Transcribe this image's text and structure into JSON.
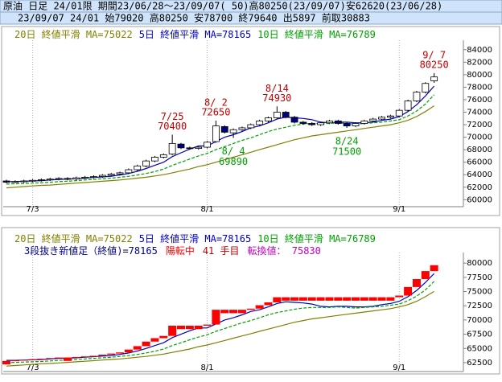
{
  "header": {
    "line1": "原油 日足 24/01限 期間23/06/28～23/09/07( 50)高80250(23/09/07)安62620(23/06/28)",
    "line2": "23/09/07 24/01 始79020 高80250 安78700 終79640 出5897 前取30883"
  },
  "chart_data": [
    {
      "type": "candlestick",
      "categories": [
        null,
        null,
        null,
        "7/3",
        null,
        null,
        null,
        null,
        null,
        null,
        null,
        null,
        null,
        null,
        null,
        null,
        null,
        null,
        null,
        null,
        null,
        null,
        null,
        "8/1",
        null,
        null,
        null,
        null,
        null,
        null,
        null,
        null,
        null,
        null,
        null,
        null,
        null,
        null,
        null,
        null,
        null,
        null,
        null,
        null,
        null,
        "9/1",
        null,
        null,
        null,
        null
      ],
      "open": [
        63000,
        62800,
        62900,
        63000,
        63100,
        63200,
        63300,
        63400,
        63300,
        63500,
        63600,
        63700,
        63900,
        64100,
        64300,
        64800,
        65400,
        66200,
        66800,
        67300,
        68900,
        68300,
        68200,
        68400,
        69300,
        71700,
        70700,
        71200,
        71500,
        72000,
        72600,
        73100,
        74000,
        73200,
        72400,
        72200,
        72000,
        72300,
        72600,
        72200,
        71800,
        72200,
        72600,
        72900,
        73200,
        73400,
        74300,
        75800,
        77200,
        79020
      ],
      "high": [
        63200,
        63100,
        63200,
        63300,
        63400,
        63500,
        63600,
        63600,
        63700,
        63800,
        63900,
        64100,
        64300,
        64500,
        65000,
        65600,
        66400,
        67000,
        67400,
        70400,
        69100,
        68500,
        68600,
        69400,
        72650,
        71900,
        71400,
        71700,
        72200,
        72800,
        73300,
        74930,
        74200,
        73400,
        72600,
        72400,
        72500,
        72800,
        72800,
        72400,
        72400,
        72800,
        73100,
        73400,
        73600,
        74500,
        76000,
        77400,
        78800,
        80250
      ],
      "low": [
        62620,
        62700,
        62700,
        62800,
        62900,
        63000,
        63100,
        63100,
        63100,
        63300,
        63400,
        63500,
        63700,
        63900,
        64100,
        64600,
        65200,
        66000,
        66600,
        67100,
        68100,
        68000,
        68000,
        68200,
        69100,
        70600,
        69890,
        71000,
        71300,
        71800,
        72400,
        72900,
        73000,
        72200,
        72000,
        71800,
        71800,
        72100,
        72000,
        71500,
        71600,
        72000,
        72400,
        72700,
        73000,
        73200,
        74100,
        75600,
        77000,
        78700
      ],
      "close": [
        62800,
        62900,
        63000,
        63100,
        63200,
        63300,
        63400,
        63300,
        63500,
        63600,
        63700,
        63900,
        64100,
        64300,
        64800,
        65400,
        66200,
        66800,
        67200,
        69000,
        68300,
        68200,
        68400,
        69200,
        71800,
        70800,
        71200,
        71500,
        72000,
        72600,
        73100,
        74000,
        73200,
        72400,
        72200,
        72000,
        72300,
        72600,
        72200,
        71800,
        72200,
        72600,
        72900,
        73200,
        73400,
        74300,
        75800,
        77200,
        78600,
        79640
      ],
      "up_color": "#ffffff",
      "down_color": "#000080",
      "series": [
        {
          "name": "20日 終値平滑 MA=75022",
          "color": "#808000",
          "values": [
            61900,
            62000,
            62100,
            62200,
            62300,
            62350,
            62450,
            62550,
            62650,
            62750,
            62850,
            62950,
            63050,
            63150,
            63300,
            63450,
            63600,
            63800,
            64000,
            64300,
            64600,
            64900,
            65300,
            65600,
            66000,
            66400,
            66800,
            67200,
            67600,
            68000,
            68400,
            68800,
            69200,
            69600,
            69900,
            70200,
            70400,
            70600,
            70800,
            71000,
            71200,
            71400,
            71600,
            71800,
            72000,
            72300,
            72700,
            73300,
            74100,
            75022
          ]
        },
        {
          "name": "5日 終値平滑 MA=78165",
          "color": "#0000c0",
          "values": [
            62900,
            62900,
            62950,
            63000,
            63050,
            63150,
            63250,
            63300,
            63350,
            63450,
            63550,
            63650,
            63750,
            63950,
            64200,
            64550,
            65000,
            65500,
            66000,
            66900,
            67500,
            68100,
            68600,
            68600,
            69300,
            70000,
            70400,
            70900,
            71500,
            71800,
            72300,
            72900,
            73200,
            73100,
            73000,
            72800,
            72400,
            72300,
            72400,
            72400,
            72300,
            72300,
            72400,
            72700,
            72900,
            73300,
            74100,
            75200,
            76600,
            78165
          ]
        },
        {
          "name": "10日 終値平滑 MA=76789",
          "color": "#00a000",
          "dashed": true,
          "values": [
            62500,
            62550,
            62600,
            62650,
            62700,
            62800,
            62900,
            62950,
            63050,
            63150,
            63250,
            63350,
            63450,
            63600,
            63750,
            63950,
            64200,
            64500,
            64900,
            65500,
            66000,
            66500,
            67000,
            67400,
            68000,
            68500,
            69000,
            69500,
            69900,
            70400,
            70900,
            71300,
            71600,
            71900,
            72100,
            72200,
            72200,
            72200,
            72300,
            72200,
            72100,
            72200,
            72300,
            72400,
            72600,
            72800,
            73400,
            74200,
            75300,
            76789
          ]
        }
      ],
      "annotations": [
        {
          "date": "7/25",
          "value": 70400,
          "color": "#c00000"
        },
        {
          "date": "8/ 2",
          "value": 72650,
          "color": "#c00000"
        },
        {
          "date": "8/14",
          "value": 74930,
          "color": "#c00000"
        },
        {
          "date": "8/ 4",
          "value": 69890,
          "color": "#00a000"
        },
        {
          "date": "8/24",
          "value": 71500,
          "color": "#00a000"
        },
        {
          "date": "9/ 7",
          "value": 80250,
          "color": "#c00000"
        }
      ],
      "ylim": [
        59400,
        85000
      ],
      "yticks": [
        60000,
        62000,
        64000,
        66000,
        68000,
        70000,
        72000,
        74000,
        76000,
        78000,
        80000,
        82000,
        84000
      ]
    },
    {
      "type": "line-break",
      "categories": [
        null,
        null,
        null,
        "7/3",
        null,
        null,
        null,
        null,
        null,
        null,
        null,
        null,
        null,
        null,
        null,
        null,
        null,
        null,
        null,
        null,
        null,
        null,
        null,
        "8/1",
        null,
        null,
        null,
        null,
        null,
        null,
        null,
        null,
        null,
        null,
        null,
        null,
        null,
        null,
        null,
        null,
        null,
        null,
        null,
        null,
        null,
        "9/1",
        null,
        null,
        null,
        null
      ],
      "top": [
        62800,
        62900,
        63000,
        63100,
        63200,
        63300,
        63400,
        63400,
        63500,
        63600,
        63700,
        63900,
        64100,
        64300,
        64800,
        65400,
        66200,
        66800,
        67200,
        69000,
        69000,
        69000,
        69000,
        69200,
        71800,
        71800,
        71800,
        71800,
        72000,
        72600,
        73100,
        74000,
        74000,
        74000,
        74000,
        74000,
        74000,
        74000,
        74000,
        74000,
        74000,
        74000,
        74000,
        74000,
        74000,
        74300,
        75800,
        77200,
        78600,
        79640
      ],
      "bottom": [
        62200,
        62800,
        62900,
        63000,
        63100,
        63200,
        63300,
        62800,
        63400,
        63500,
        63600,
        63700,
        63900,
        64100,
        64300,
        64800,
        65400,
        66200,
        66800,
        67200,
        68400,
        68400,
        68400,
        69000,
        69200,
        71200,
        71200,
        71200,
        71800,
        72000,
        72600,
        73100,
        73400,
        73400,
        73400,
        73400,
        73400,
        73400,
        73400,
        73400,
        73400,
        73400,
        73400,
        73400,
        73400,
        74000,
        74300,
        75800,
        77200,
        78600
      ],
      "brick_color": "#ff0000",
      "series": [
        {
          "name": "20日 終値平滑 MA=75022",
          "color": "#808000",
          "values": [
            61900,
            62000,
            62100,
            62200,
            62300,
            62350,
            62450,
            62550,
            62650,
            62750,
            62850,
            62950,
            63050,
            63150,
            63300,
            63450,
            63600,
            63800,
            64000,
            64300,
            64600,
            64900,
            65300,
            65600,
            66000,
            66400,
            66800,
            67200,
            67600,
            68000,
            68400,
            68800,
            69200,
            69600,
            69900,
            70200,
            70400,
            70600,
            70800,
            71000,
            71200,
            71400,
            71600,
            71800,
            72000,
            72300,
            72700,
            73300,
            74100,
            75022
          ]
        },
        {
          "name": "5日 終値平滑 MA=78165",
          "color": "#0000c0",
          "values": [
            62900,
            62900,
            62950,
            63000,
            63050,
            63150,
            63250,
            63300,
            63350,
            63450,
            63550,
            63650,
            63750,
            63950,
            64200,
            64550,
            65000,
            65500,
            66000,
            66900,
            67500,
            68100,
            68600,
            68600,
            69300,
            70000,
            70400,
            70900,
            71500,
            71800,
            72300,
            72900,
            73200,
            73100,
            73000,
            72800,
            72400,
            72300,
            72400,
            72400,
            72300,
            72300,
            72400,
            72700,
            72900,
            73300,
            74100,
            75200,
            76600,
            78165
          ]
        },
        {
          "name": "10日 終値平滑 MA=76789",
          "color": "#00a000",
          "dashed": true,
          "values": [
            62500,
            62550,
            62600,
            62650,
            62700,
            62800,
            62900,
            62950,
            63050,
            63150,
            63250,
            63350,
            63450,
            63600,
            63750,
            63950,
            64200,
            64500,
            64900,
            65500,
            66000,
            66500,
            67000,
            67400,
            68000,
            68500,
            69000,
            69500,
            69900,
            70400,
            70900,
            71300,
            71600,
            71900,
            72100,
            72200,
            72200,
            72200,
            72300,
            72200,
            72100,
            72200,
            72300,
            72400,
            72600,
            72800,
            73400,
            74200,
            75300,
            76789
          ]
        }
      ],
      "info": [
        {
          "text": "3段抜き新値足（終値)=78165",
          "color": "#000080"
        },
        {
          "text": "陽転中",
          "color": "#ff0000"
        },
        {
          "text": "41 手目",
          "color": "#c00000"
        },
        {
          "text": "転換値： 75830",
          "color": "#c000c0"
        }
      ],
      "ylim": [
        61500,
        81300
      ],
      "yticks": [
        62500,
        65000,
        67500,
        70000,
        72500,
        75000,
        77500,
        80000
      ]
    }
  ]
}
